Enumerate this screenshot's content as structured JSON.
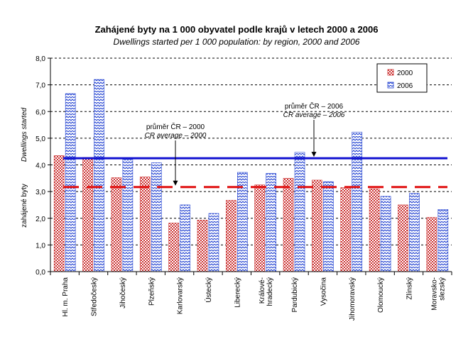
{
  "chart_data": {
    "type": "bar",
    "title": "Zahájené byty na 1 000 obyvatel podle krajů v letech 2000 a 2006",
    "subtitle": "Dwellings started per 1 000 population: by region, 2000 and 2006",
    "ylabel": "zahájené byty",
    "ylabel_en": "Dwellings started",
    "ylim": [
      0,
      8
    ],
    "yticks": [
      "0,0",
      "1,0",
      "2,0",
      "3,0",
      "4,0",
      "5,0",
      "6,0",
      "7,0",
      "8,0"
    ],
    "grid": "horizontal dashed",
    "legend_position": "top-right",
    "categories": [
      "Hl. m. Praha",
      "Středočeský",
      "Jihočeský",
      "Plzeňský",
      "Karlovarský",
      "Ústecký",
      "Liberecký",
      "Králové-hradecký",
      "Pardubický",
      "Vysočina",
      "Jihomoravský",
      "Olomoucký",
      "Zlínský",
      "Moravsko-slezský"
    ],
    "series": [
      {
        "name": "2000",
        "color": "#cc3333",
        "pattern": "checkered",
        "values": [
          4.35,
          4.28,
          3.52,
          3.55,
          1.82,
          1.93,
          2.67,
          3.25,
          3.5,
          3.43,
          3.15,
          3.1,
          2.5,
          2.03
        ]
      },
      {
        "name": "2006",
        "color": "#1f3fd0",
        "pattern": "wave",
        "values": [
          6.67,
          7.2,
          4.22,
          4.08,
          2.5,
          2.18,
          3.72,
          3.68,
          4.47,
          3.37,
          5.23,
          2.82,
          2.93,
          2.33
        ]
      }
    ],
    "reference_lines": [
      {
        "label": "průměr ČR – 2000",
        "label_en": "CR average – 2000",
        "value": 3.17,
        "color": "#e01010",
        "style": "dashed"
      },
      {
        "label": "průměr ČR – 2006",
        "label_en": "CR average – 2006",
        "value": 4.25,
        "color": "#1010d0",
        "style": "solid"
      }
    ]
  }
}
